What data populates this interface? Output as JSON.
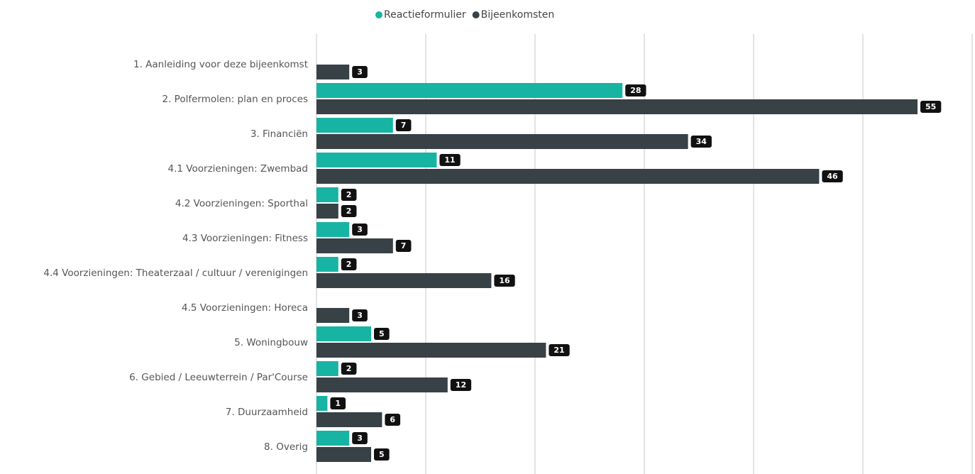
{
  "chart_data": {
    "type": "bar",
    "orientation": "horizontal",
    "categories": [
      "1. Aanleiding voor deze bijeenkomst",
      "2. Polfermolen: plan en proces",
      "3. Financiën",
      "4.1 Voorzieningen: Zwembad",
      "4.2 Voorzieningen: Sporthal",
      "4.3 Voorzieningen: Fitness",
      "4.4 Voorzieningen: Theaterzaal / cultuur / verenigingen",
      "4.5 Voorzieningen: Horeca",
      "5. Woningbouw",
      "6. Gebied / Leeuwterrein / Par'Course",
      "7. Duurzaamheid",
      "8. Overig"
    ],
    "series": [
      {
        "name": "Reactieformulier",
        "color": "#17b3a3",
        "values": [
          null,
          28,
          7,
          11,
          2,
          3,
          2,
          null,
          5,
          2,
          1,
          3
        ]
      },
      {
        "name": "Bijeenkomsten",
        "color": "#374146",
        "values": [
          3,
          55,
          34,
          46,
          2,
          7,
          16,
          3,
          21,
          12,
          6,
          5
        ]
      }
    ],
    "xlim": [
      0,
      60
    ],
    "xticks": [
      0,
      10,
      20,
      30,
      40,
      50,
      60
    ],
    "grid": true,
    "legend": "top"
  }
}
